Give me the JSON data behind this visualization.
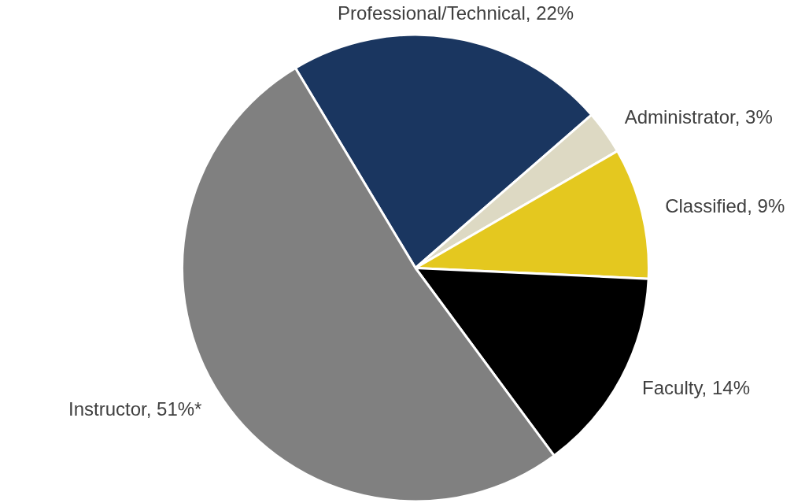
{
  "chart_data": {
    "type": "pie",
    "categories": [
      "Professional/Technical",
      "Administrator",
      "Classified",
      "Faculty",
      "Instructor"
    ],
    "values": [
      22,
      3,
      9,
      14,
      51
    ],
    "value_labels": [
      "22%",
      "3%",
      "9%",
      "14%",
      "51%*"
    ],
    "colors": [
      "#1a3660",
      "#ddd9c3",
      "#e4c81f",
      "#000000",
      "#808080"
    ],
    "legend": false
  }
}
